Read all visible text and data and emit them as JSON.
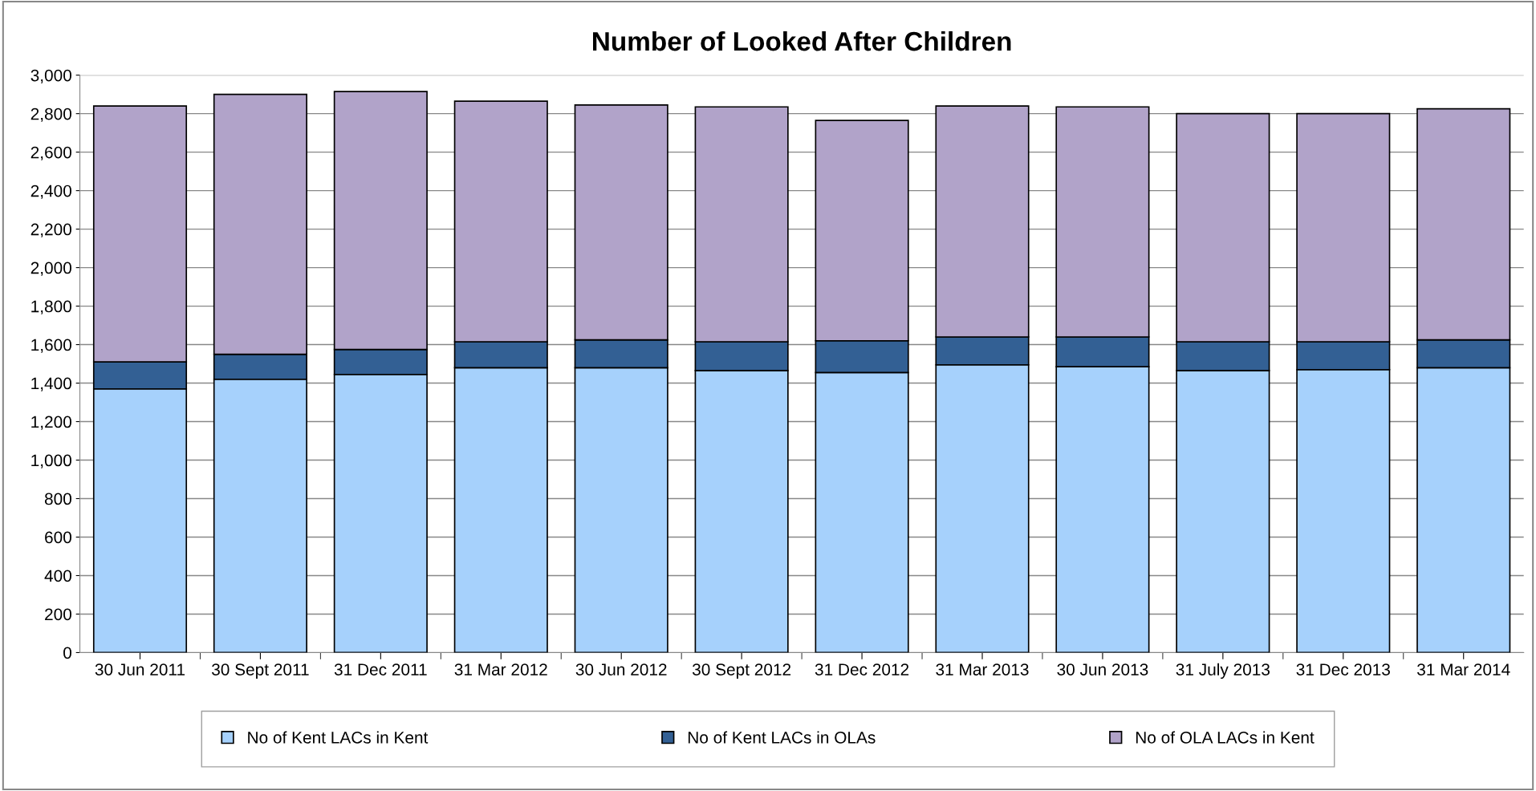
{
  "chart_data": {
    "type": "bar",
    "title": "Number of Looked After Children",
    "stacked": true,
    "categories": [
      "30 Jun 2011",
      "30 Sept 2011",
      "31 Dec 2011",
      "31 Mar 2012",
      "30 Jun 2012",
      "30 Sept 2012",
      "31 Dec 2012",
      "31 Mar 2013",
      "30 Jun 2013",
      "31 July 2013",
      "31 Dec 2013",
      "31 Mar 2014"
    ],
    "series": [
      {
        "name": "No of Kent LACs in Kent",
        "color": "#a6d1fc",
        "values": [
          1370,
          1420,
          1445,
          1480,
          1480,
          1465,
          1455,
          1495,
          1485,
          1465,
          1470,
          1480
        ]
      },
      {
        "name": "No of Kent LACs in OLAs",
        "color": "#336094",
        "values": [
          140,
          130,
          130,
          135,
          145,
          150,
          165,
          145,
          155,
          150,
          145,
          145
        ]
      },
      {
        "name": "No of OLA LACs in Kent",
        "color": "#b1a3c9",
        "values": [
          1330,
          1350,
          1340,
          1250,
          1220,
          1220,
          1145,
          1200,
          1195,
          1185,
          1185,
          1200
        ]
      }
    ],
    "ylim": [
      0,
      3000
    ],
    "yticks": [
      {
        "value": 0,
        "label": "0"
      },
      {
        "value": 200,
        "label": "200"
      },
      {
        "value": 400,
        "label": "400"
      },
      {
        "value": 600,
        "label": "600"
      },
      {
        "value": 800,
        "label": "800"
      },
      {
        "value": 1000,
        "label": "1,000"
      },
      {
        "value": 1200,
        "label": "1,200"
      },
      {
        "value": 1400,
        "label": "1,400"
      },
      {
        "value": 1600,
        "label": "1,600"
      },
      {
        "value": 1800,
        "label": "1,800"
      },
      {
        "value": 2000,
        "label": "2,000"
      },
      {
        "value": 2200,
        "label": "2,200"
      },
      {
        "value": 2400,
        "label": "2,400"
      },
      {
        "value": 2600,
        "label": "2,600"
      },
      {
        "value": 2800,
        "label": "2,800"
      },
      {
        "value": 3000,
        "label": "3,000"
      }
    ],
    "grid": "y",
    "legend": "bottom"
  }
}
